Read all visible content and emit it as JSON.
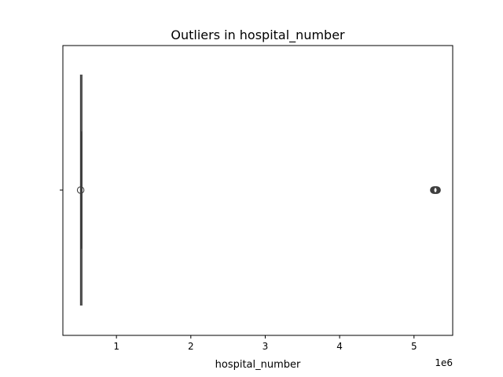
{
  "chart_data": {
    "type": "boxplot",
    "orientation": "horizontal",
    "title": "Outliers in hospital_number",
    "xlabel": "hospital_number",
    "ylabel": "",
    "x_offset_label": "1e6",
    "xlim": [
      280000,
      5520000
    ],
    "xticks": [
      1,
      2,
      3,
      4,
      5
    ],
    "x_scale": 1000000,
    "grid": false,
    "box": {
      "whisker_low": 518500,
      "q1": 524000,
      "median": 528000,
      "q3": 533000,
      "whisker_high": 535000
    },
    "outliers": [
      519000,
      5265000,
      5272000,
      5278000,
      5283000,
      5289000,
      5295000,
      5300000,
      5305000,
      5310000
    ]
  }
}
